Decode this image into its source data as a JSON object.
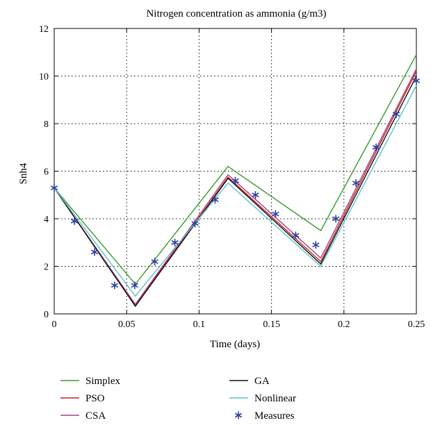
{
  "chart_data": {
    "type": "line",
    "title": "Nitrogen concentration as ammonia (g/m3)",
    "xlabel": "Time (days)",
    "ylabel": "Snh4",
    "xlim": [
      0,
      0.25
    ],
    "ylim": [
      0,
      12
    ],
    "x_ticks": [
      0,
      0.05,
      0.1,
      0.15,
      0.2,
      0.25
    ],
    "x_tick_labels": [
      "0",
      "0.05",
      "0.1",
      "0.15",
      "0.2",
      "0.25"
    ],
    "y_ticks": [
      0,
      2,
      4,
      6,
      8,
      10,
      12
    ],
    "y_tick_labels": [
      "0",
      "2",
      "4",
      "6",
      "8",
      "10",
      "12"
    ],
    "grid": true,
    "legend_position": "below",
    "series": [
      {
        "name": "Simplex",
        "color": "#3a9a2a",
        "style": "line",
        "x": [
          0,
          0.056,
          0.12,
          0.184,
          0.25
        ],
        "y": [
          5.3,
          1.25,
          6.2,
          3.5,
          10.9
        ]
      },
      {
        "name": "PSO",
        "color": "#cc1f1f",
        "style": "line",
        "x": [
          0,
          0.056,
          0.12,
          0.184,
          0.25
        ],
        "y": [
          5.3,
          0.35,
          5.75,
          2.2,
          10.2
        ]
      },
      {
        "name": "CSA",
        "color": "#a0407f",
        "style": "line",
        "x": [
          0,
          0.056,
          0.12,
          0.184,
          0.25
        ],
        "y": [
          5.3,
          0.4,
          5.85,
          2.35,
          10.3
        ]
      },
      {
        "name": "GA",
        "color": "#111111",
        "style": "line",
        "x": [
          0,
          0.056,
          0.12,
          0.184,
          0.25
        ],
        "y": [
          5.3,
          0.32,
          5.7,
          2.1,
          10.0
        ]
      },
      {
        "name": "Nonlinear",
        "color": "#5bc0cf",
        "style": "line",
        "x": [
          0,
          0.056,
          0.12,
          0.184,
          0.25
        ],
        "y": [
          5.3,
          0.75,
          5.5,
          2.0,
          9.6
        ]
      },
      {
        "name": "Measures",
        "color": "#2b3fa0",
        "style": "marker",
        "x": [
          0,
          0.0139,
          0.0278,
          0.0417,
          0.0556,
          0.0694,
          0.0833,
          0.0972,
          0.1111,
          0.125,
          0.1389,
          0.1528,
          0.1667,
          0.1806,
          0.1944,
          0.2083,
          0.2222,
          0.2361,
          0.25
        ],
        "y": [
          5.3,
          3.9,
          2.6,
          1.2,
          1.2,
          2.2,
          3.0,
          3.8,
          4.8,
          5.6,
          5.0,
          4.2,
          3.3,
          2.9,
          4.0,
          5.5,
          7.0,
          8.4,
          9.8
        ]
      }
    ]
  }
}
